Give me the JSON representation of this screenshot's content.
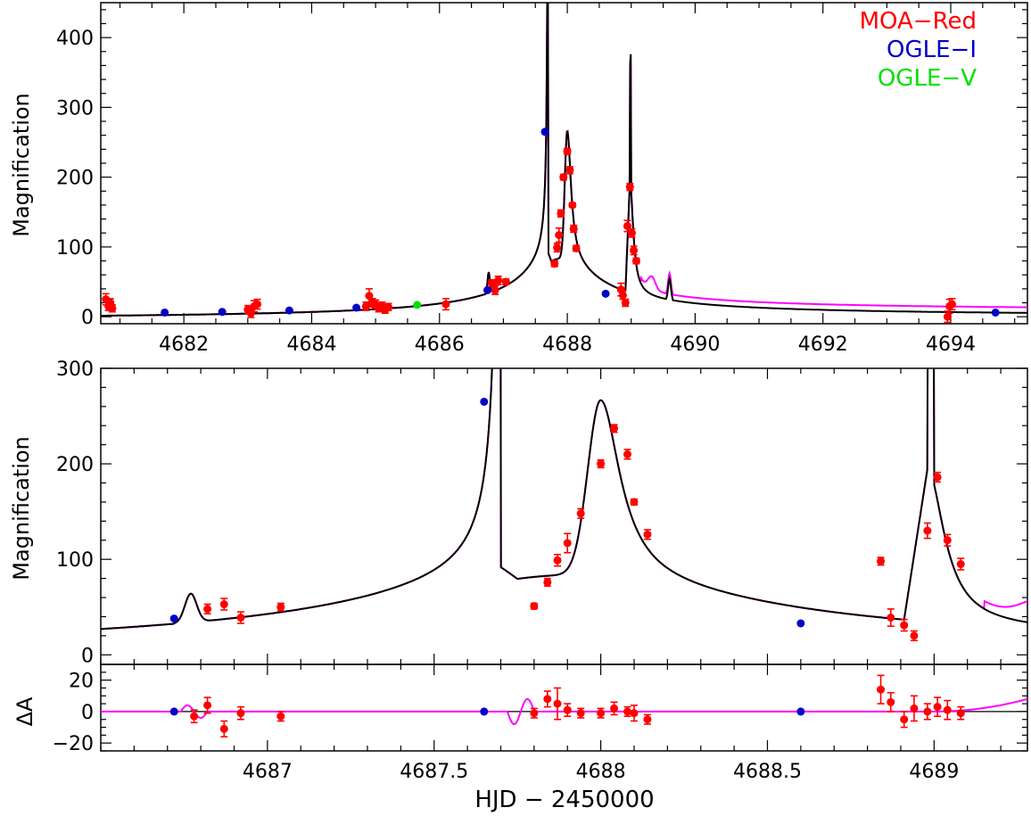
{
  "colors": {
    "moa": "#ff0000",
    "ogle_i": "#0000c8",
    "ogle_v": "#00e000",
    "model_black": "#000000",
    "model_magenta": "#ff00ff",
    "axis": "#000000"
  },
  "chart_data": [
    {
      "type": "scatter",
      "panel": "top",
      "ylabel": "Magnification",
      "xlim": [
        4680.7,
        4695.2
      ],
      "ylim": [
        -10,
        450
      ],
      "xticks": [
        4682,
        4684,
        4686,
        4688,
        4690,
        4692,
        4694
      ],
      "xtick_labels": [
        "4682",
        "4684",
        "4686",
        "4688",
        "4690",
        "4692",
        "4694"
      ],
      "yticks": [
        0,
        100,
        200,
        300,
        400
      ],
      "ytick_labels": [
        "0",
        "100",
        "200",
        "300",
        "400"
      ],
      "legend": {
        "placement": "top-right",
        "entries": [
          {
            "text": "MOA−Red",
            "color": "#ff0000"
          },
          {
            "text": "OGLE−I",
            "color": "#0000c8"
          },
          {
            "text": "OGLE−V",
            "color": "#00e000"
          }
        ]
      },
      "series": [
        {
          "name": "MOA−Red",
          "x": [
            4680.78,
            4680.82,
            4680.85,
            4680.88,
            4683.0,
            4683.05,
            4683.1,
            4683.15,
            4684.85,
            4684.9,
            4684.95,
            4685.0,
            4685.05,
            4685.1,
            4685.15,
            4685.2,
            4686.1,
            4686.82,
            4686.87,
            4686.92,
            4687.04,
            4687.8,
            4687.84,
            4687.87,
            4687.9,
            4687.94,
            4688.0,
            4688.04,
            4688.08,
            4688.1,
            4688.14,
            4688.84,
            4688.87,
            4688.91,
            4688.94,
            4688.98,
            4689.01,
            4689.04,
            4689.08,
            4693.95,
            4693.98,
            4694.02
          ],
          "y": [
            25,
            15,
            20,
            12,
            10,
            5,
            15,
            18,
            15,
            30,
            20,
            18,
            12,
            15,
            10,
            14,
            18,
            48,
            38,
            52,
            50,
            76,
            99,
            117,
            148,
            200,
            237,
            210,
            160,
            126,
            98,
            39,
            31,
            20,
            130,
            186,
            120,
            95,
            80,
            0,
            15,
            18
          ],
          "yerr": [
            8,
            6,
            6,
            5,
            6,
            6,
            8,
            7,
            6,
            10,
            6,
            6,
            5,
            6,
            5,
            5,
            8,
            5,
            6,
            6,
            4,
            4,
            6,
            10,
            5,
            4,
            4,
            5,
            3,
            5,
            4,
            9,
            6,
            5,
            8,
            5,
            6,
            6,
            4,
            8,
            10,
            8
          ]
        },
        {
          "name": "OGLE−I",
          "x": [
            4681.7,
            4682.6,
            4683.65,
            4684.7,
            4686.75,
            4687.65,
            4688.6,
            4694.7
          ],
          "y": [
            6,
            7,
            9,
            13,
            38,
            265,
            33,
            6
          ]
        },
        {
          "name": "OGLE−V",
          "x": [
            4685.65
          ],
          "y": [
            17
          ]
        }
      ]
    },
    {
      "type": "scatter",
      "panel": "middle",
      "ylabel": "Magnification",
      "xlim": [
        4686.5,
        4689.28
      ],
      "ylim": [
        -10,
        300
      ],
      "yticks": [
        0,
        100,
        200,
        300
      ],
      "ytick_labels": [
        "0",
        "100",
        "200",
        "300"
      ],
      "series": [
        {
          "name": "MOA−Red",
          "x": [
            4686.82,
            4686.87,
            4686.92,
            4687.04,
            4687.8,
            4687.84,
            4687.87,
            4687.9,
            4687.94,
            4688.0,
            4688.04,
            4688.08,
            4688.1,
            4688.14,
            4688.84,
            4688.87,
            4688.91,
            4688.94,
            4688.98,
            4689.01,
            4689.04,
            4689.08
          ],
          "y": [
            48,
            53,
            39,
            50,
            51,
            76,
            99,
            117,
            148,
            200,
            237,
            210,
            160,
            126,
            98,
            39,
            31,
            20,
            130,
            186,
            120,
            95
          ],
          "yerr": [
            5,
            6,
            6,
            4,
            3,
            4,
            6,
            10,
            5,
            4,
            4,
            5,
            3,
            5,
            4,
            9,
            6,
            5,
            8,
            5,
            6,
            6
          ]
        },
        {
          "name": "OGLE−I",
          "x": [
            4686.72,
            4687.65,
            4688.6
          ],
          "y": [
            38,
            265,
            33
          ]
        }
      ]
    },
    {
      "type": "scatter",
      "panel": "bottom",
      "xlabel": "HJD − 2450000",
      "ylabel": "ΔA",
      "xlim": [
        4686.5,
        4689.28
      ],
      "ylim": [
        -25,
        30
      ],
      "xticks": [
        4687,
        4687.5,
        4688,
        4688.5,
        4689
      ],
      "xtick_labels": [
        "4687",
        "4687.5",
        "4688",
        "4688.5",
        "4689"
      ],
      "yticks": [
        -20,
        0,
        20
      ],
      "ytick_labels": [
        "−20",
        "0",
        "20"
      ],
      "series": [
        {
          "name": "MOA−Red",
          "x": [
            4686.78,
            4686.82,
            4686.87,
            4686.92,
            4687.04,
            4687.8,
            4687.84,
            4687.87,
            4687.9,
            4687.94,
            4688.0,
            4688.04,
            4688.08,
            4688.1,
            4688.14,
            4688.84,
            4688.87,
            4688.91,
            4688.94,
            4688.98,
            4689.01,
            4689.04,
            4689.08
          ],
          "y": [
            -3,
            4,
            -11,
            -1,
            -3,
            -1,
            8,
            5,
            1,
            -1,
            -1,
            2,
            0,
            -1,
            -5,
            14,
            6,
            -5,
            2,
            0,
            3,
            1,
            -1
          ],
          "yerr": [
            4,
            5,
            5,
            4,
            3,
            3,
            5,
            10,
            4,
            3,
            3,
            4,
            3,
            5,
            3,
            9,
            6,
            5,
            8,
            5,
            6,
            6,
            4
          ]
        },
        {
          "name": "OGLE−I",
          "x": [
            4686.72,
            4687.65,
            4688.6
          ],
          "y": [
            0,
            0,
            0
          ]
        }
      ]
    }
  ]
}
